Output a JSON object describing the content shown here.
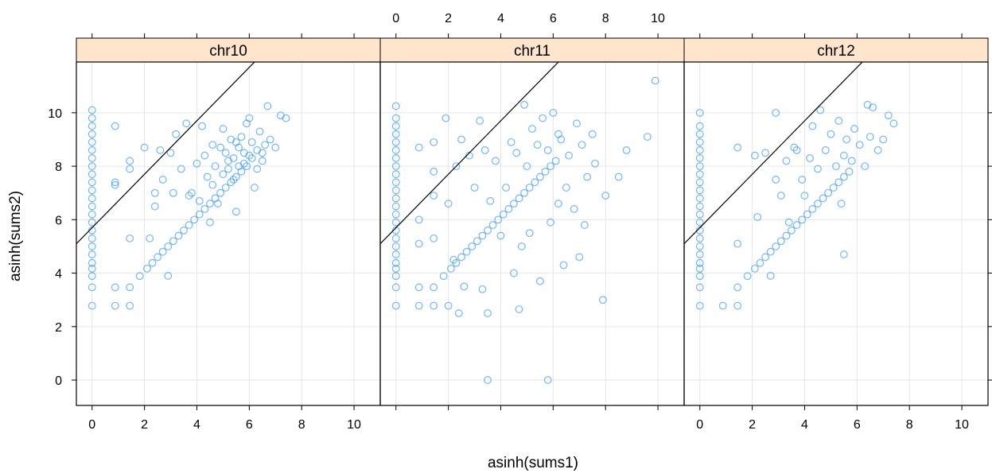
{
  "chart_data": {
    "type": "scatter",
    "layout": "trellis-panels",
    "xlabel": "asinh(sums1)",
    "ylabel": "asinh(sums2)",
    "xlim": [
      -0.6,
      11.0
    ],
    "ylim": [
      -0.95,
      11.9
    ],
    "x_ticks": [
      0,
      2,
      4,
      6,
      8,
      10
    ],
    "y_ticks": [
      0,
      2,
      4,
      6,
      8,
      10
    ],
    "grid": true,
    "point_color": "#3399ff",
    "strip_color": "#ffe5cc",
    "reference_line": {
      "slope": 1,
      "intercept": 5.7
    },
    "panels": [
      {
        "name": "chr10",
        "points": [
          [
            0,
            2.78
          ],
          [
            0,
            3.47
          ],
          [
            0,
            3.89
          ],
          [
            0,
            4.17
          ],
          [
            0,
            4.38
          ],
          [
            0,
            4.7
          ],
          [
            0,
            5.0
          ],
          [
            0,
            5.3
          ],
          [
            0,
            5.6
          ],
          [
            0,
            5.9
          ],
          [
            0,
            6.2
          ],
          [
            0,
            6.5
          ],
          [
            0,
            6.8
          ],
          [
            0,
            7.1
          ],
          [
            0,
            7.4
          ],
          [
            0,
            7.7
          ],
          [
            0,
            8.0
          ],
          [
            0,
            8.3
          ],
          [
            0,
            8.6
          ],
          [
            0,
            8.9
          ],
          [
            0,
            9.2
          ],
          [
            0,
            9.5
          ],
          [
            0,
            9.8
          ],
          [
            0,
            10.1
          ],
          [
            0.88,
            2.78
          ],
          [
            0.88,
            3.47
          ],
          [
            0.88,
            7.3
          ],
          [
            0.88,
            7.4
          ],
          [
            0.88,
            9.5
          ],
          [
            1.44,
            2.78
          ],
          [
            1.44,
            3.47
          ],
          [
            1.44,
            5.3
          ],
          [
            1.44,
            7.9
          ],
          [
            1.44,
            8.2
          ],
          [
            1.82,
            3.89
          ],
          [
            2.1,
            4.17
          ],
          [
            2.3,
            4.38
          ],
          [
            2.5,
            4.6
          ],
          [
            2.7,
            4.8
          ],
          [
            2.9,
            5.0
          ],
          [
            3.1,
            5.2
          ],
          [
            3.3,
            5.4
          ],
          [
            3.5,
            5.6
          ],
          [
            3.7,
            5.8
          ],
          [
            3.9,
            6.0
          ],
          [
            4.1,
            6.2
          ],
          [
            4.3,
            6.4
          ],
          [
            4.5,
            6.6
          ],
          [
            4.7,
            6.8
          ],
          [
            4.9,
            7.0
          ],
          [
            5.1,
            7.2
          ],
          [
            5.3,
            7.4
          ],
          [
            5.5,
            7.6
          ],
          [
            5.7,
            7.8
          ],
          [
            5.9,
            8.0
          ],
          [
            2.2,
            5.3
          ],
          [
            2.4,
            6.5
          ],
          [
            2.6,
            8.6
          ],
          [
            2.9,
            3.9
          ],
          [
            3.1,
            7.0
          ],
          [
            3.2,
            9.2
          ],
          [
            3.6,
            9.6
          ],
          [
            3.8,
            7.0
          ],
          [
            4.2,
            9.5
          ],
          [
            4.4,
            7.6
          ],
          [
            4.5,
            5.9
          ],
          [
            4.6,
            8.8
          ],
          [
            4.8,
            6.6
          ],
          [
            5.0,
            9.4
          ],
          [
            5.1,
            8.5
          ],
          [
            5.2,
            7.9
          ],
          [
            5.3,
            9.0
          ],
          [
            5.4,
            8.3
          ],
          [
            5.5,
            6.3
          ],
          [
            5.6,
            8.7
          ],
          [
            5.7,
            9.1
          ],
          [
            5.8,
            8.1
          ],
          [
            5.9,
            9.6
          ],
          [
            6.0,
            8.4
          ],
          [
            6.0,
            9.8
          ],
          [
            6.1,
            8.9
          ],
          [
            6.2,
            7.2
          ],
          [
            6.3,
            8.6
          ],
          [
            6.4,
            9.3
          ],
          [
            6.5,
            8.2
          ],
          [
            6.6,
            8.8
          ],
          [
            6.7,
            10.25
          ],
          [
            6.8,
            9.0
          ],
          [
            7.0,
            8.7
          ],
          [
            7.2,
            9.9
          ],
          [
            7.4,
            9.8
          ],
          [
            4.0,
            8.1
          ],
          [
            4.3,
            8.4
          ],
          [
            4.7,
            8.0
          ],
          [
            4.9,
            8.7
          ],
          [
            5.2,
            8.2
          ],
          [
            5.5,
            8.9
          ],
          [
            5.6,
            8.0
          ],
          [
            5.8,
            8.5
          ],
          [
            6.1,
            8.3
          ],
          [
            6.3,
            7.9
          ],
          [
            6.5,
            8.5
          ],
          [
            5.0,
            7.7
          ],
          [
            5.4,
            7.5
          ],
          [
            4.6,
            7.3
          ],
          [
            4.1,
            6.7
          ],
          [
            3.7,
            6.9
          ],
          [
            3.4,
            7.9
          ],
          [
            3.0,
            8.5
          ],
          [
            2.7,
            7.5
          ],
          [
            2.4,
            7.0
          ],
          [
            2.0,
            8.7
          ]
        ]
      },
      {
        "name": "chr11",
        "points": [
          [
            0,
            2.78
          ],
          [
            0,
            3.47
          ],
          [
            0,
            3.89
          ],
          [
            0,
            4.17
          ],
          [
            0,
            4.38
          ],
          [
            0,
            4.7
          ],
          [
            0,
            5.0
          ],
          [
            0,
            5.3
          ],
          [
            0,
            5.6
          ],
          [
            0,
            5.9
          ],
          [
            0,
            6.2
          ],
          [
            0,
            6.5
          ],
          [
            0,
            6.8
          ],
          [
            0,
            7.1
          ],
          [
            0,
            7.4
          ],
          [
            0,
            7.7
          ],
          [
            0,
            8.0
          ],
          [
            0,
            8.3
          ],
          [
            0,
            8.6
          ],
          [
            0,
            8.9
          ],
          [
            0,
            9.2
          ],
          [
            0,
            9.5
          ],
          [
            0,
            9.8
          ],
          [
            0,
            10.25
          ],
          [
            0.88,
            2.78
          ],
          [
            0.88,
            3.47
          ],
          [
            0.88,
            5.1
          ],
          [
            0.88,
            6.0
          ],
          [
            0.88,
            8.7
          ],
          [
            1.44,
            2.78
          ],
          [
            1.44,
            3.47
          ],
          [
            1.44,
            5.3
          ],
          [
            1.44,
            6.9
          ],
          [
            1.44,
            7.8
          ],
          [
            1.44,
            8.9
          ],
          [
            1.82,
            3.89
          ],
          [
            2.1,
            4.17
          ],
          [
            2.3,
            4.38
          ],
          [
            2.5,
            4.6
          ],
          [
            2.7,
            4.8
          ],
          [
            2.9,
            5.0
          ],
          [
            3.1,
            5.2
          ],
          [
            3.3,
            5.4
          ],
          [
            3.5,
            5.6
          ],
          [
            3.7,
            5.8
          ],
          [
            3.9,
            6.0
          ],
          [
            4.1,
            6.2
          ],
          [
            4.3,
            6.4
          ],
          [
            4.5,
            6.6
          ],
          [
            4.7,
            6.8
          ],
          [
            4.9,
            7.0
          ],
          [
            5.1,
            7.2
          ],
          [
            5.3,
            7.4
          ],
          [
            5.5,
            7.6
          ],
          [
            5.7,
            7.8
          ],
          [
            5.9,
            8.0
          ],
          [
            6.1,
            8.2
          ],
          [
            2.0,
            2.78
          ],
          [
            2.4,
            2.5
          ],
          [
            3.5,
            2.5
          ],
          [
            3.5,
            0.0
          ],
          [
            5.8,
            0.0
          ],
          [
            4.7,
            2.65
          ],
          [
            7.9,
            3.0
          ],
          [
            9.9,
            11.2
          ],
          [
            9.6,
            9.1
          ],
          [
            8.8,
            8.6
          ],
          [
            8.5,
            7.6
          ],
          [
            7.2,
            5.8
          ],
          [
            7.0,
            4.6
          ],
          [
            6.4,
            4.3
          ],
          [
            5.5,
            3.7
          ],
          [
            3.3,
            3.4
          ],
          [
            2.6,
            3.5
          ],
          [
            2.2,
            4.5
          ],
          [
            1.9,
            9.8
          ],
          [
            2.5,
            9.0
          ],
          [
            3.0,
            7.2
          ],
          [
            3.6,
            6.7
          ],
          [
            4.0,
            5.4
          ],
          [
            4.4,
            8.9
          ],
          [
            4.9,
            10.3
          ],
          [
            5.2,
            9.4
          ],
          [
            5.6,
            9.8
          ],
          [
            6.0,
            10.0
          ],
          [
            6.3,
            9.0
          ],
          [
            6.6,
            8.4
          ],
          [
            6.9,
            9.6
          ],
          [
            7.3,
            7.6
          ],
          [
            7.6,
            8.1
          ],
          [
            8.0,
            6.9
          ],
          [
            3.2,
            9.7
          ],
          [
            3.8,
            8.2
          ],
          [
            4.2,
            7.2
          ],
          [
            4.6,
            8.5
          ],
          [
            5.0,
            8.0
          ],
          [
            5.4,
            8.8
          ],
          [
            5.8,
            8.6
          ],
          [
            6.2,
            9.2
          ],
          [
            6.5,
            7.2
          ],
          [
            6.8,
            6.4
          ],
          [
            7.1,
            8.8
          ],
          [
            7.5,
            9.2
          ],
          [
            5.1,
            5.5
          ],
          [
            4.5,
            4.0
          ],
          [
            4.8,
            5.0
          ],
          [
            5.9,
            5.9
          ],
          [
            6.2,
            6.6
          ],
          [
            3.4,
            8.6
          ],
          [
            2.8,
            8.4
          ],
          [
            2.3,
            8.0
          ],
          [
            2.0,
            6.6
          ]
        ]
      },
      {
        "name": "chr12",
        "points": [
          [
            0,
            2.78
          ],
          [
            0,
            3.47
          ],
          [
            0,
            3.89
          ],
          [
            0,
            4.17
          ],
          [
            0,
            4.38
          ],
          [
            0,
            4.7
          ],
          [
            0,
            5.0
          ],
          [
            0,
            5.3
          ],
          [
            0,
            5.6
          ],
          [
            0,
            5.9
          ],
          [
            0,
            6.2
          ],
          [
            0,
            6.5
          ],
          [
            0,
            6.8
          ],
          [
            0,
            7.1
          ],
          [
            0,
            7.4
          ],
          [
            0,
            7.7
          ],
          [
            0,
            8.0
          ],
          [
            0,
            8.3
          ],
          [
            0,
            8.6
          ],
          [
            0,
            8.9
          ],
          [
            0,
            9.2
          ],
          [
            0,
            9.5
          ],
          [
            0,
            10.0
          ],
          [
            0.88,
            2.78
          ],
          [
            1.44,
            2.78
          ],
          [
            1.44,
            3.47
          ],
          [
            1.44,
            5.1
          ],
          [
            1.44,
            8.7
          ],
          [
            1.82,
            3.89
          ],
          [
            2.1,
            4.17
          ],
          [
            2.3,
            4.38
          ],
          [
            2.5,
            4.6
          ],
          [
            2.7,
            4.8
          ],
          [
            2.9,
            5.0
          ],
          [
            3.1,
            5.2
          ],
          [
            3.3,
            5.4
          ],
          [
            3.5,
            5.6
          ],
          [
            3.7,
            5.8
          ],
          [
            3.9,
            6.0
          ],
          [
            4.1,
            6.2
          ],
          [
            4.3,
            6.4
          ],
          [
            4.5,
            6.6
          ],
          [
            4.7,
            6.8
          ],
          [
            4.9,
            7.0
          ],
          [
            5.1,
            7.2
          ],
          [
            5.3,
            7.4
          ],
          [
            5.5,
            7.6
          ],
          [
            5.7,
            7.8
          ],
          [
            2.1,
            8.4
          ],
          [
            2.5,
            8.5
          ],
          [
            2.9,
            7.5
          ],
          [
            3.1,
            6.9
          ],
          [
            3.3,
            8.2
          ],
          [
            3.6,
            8.7
          ],
          [
            3.9,
            7.5
          ],
          [
            4.2,
            8.3
          ],
          [
            4.3,
            9.5
          ],
          [
            4.5,
            7.9
          ],
          [
            4.8,
            8.6
          ],
          [
            5.0,
            9.2
          ],
          [
            5.2,
            8.0
          ],
          [
            5.3,
            9.7
          ],
          [
            5.5,
            8.4
          ],
          [
            5.6,
            9.0
          ],
          [
            5.8,
            8.2
          ],
          [
            5.9,
            9.4
          ],
          [
            6.1,
            8.8
          ],
          [
            6.3,
            8.0
          ],
          [
            6.5,
            9.1
          ],
          [
            6.6,
            10.2
          ],
          [
            6.8,
            8.6
          ],
          [
            7.0,
            9.0
          ],
          [
            7.2,
            9.9
          ],
          [
            7.4,
            9.6
          ],
          [
            2.2,
            6.1
          ],
          [
            2.7,
            3.9
          ],
          [
            3.4,
            5.9
          ],
          [
            5.5,
            4.7
          ],
          [
            2.9,
            10.0
          ],
          [
            4.6,
            10.1
          ],
          [
            6.4,
            10.3
          ],
          [
            5.4,
            6.6
          ],
          [
            4.0,
            6.9
          ],
          [
            3.7,
            8.6
          ]
        ]
      }
    ]
  }
}
